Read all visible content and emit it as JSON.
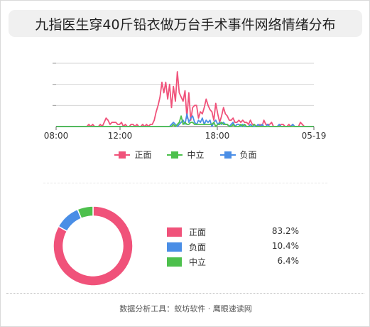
{
  "title": "九指医生穿40斤铅衣做万台手术事件网络情绪分布",
  "footer": "数据分析工具：蚁坊软件 · 鹰眼速读网",
  "colors": {
    "positive": "#f0527a",
    "neutral": "#4dc04d",
    "negative": "#4a8ee6"
  },
  "chart_data": [
    {
      "type": "line",
      "x_ticks": [
        "08:00",
        "12:00",
        "18:00",
        "05-19"
      ],
      "grid": true,
      "legend_position": "bottom-center",
      "series": [
        {
          "name": "正面",
          "values": [
            0,
            0,
            0,
            0,
            0,
            0,
            0,
            0,
            0,
            0,
            0,
            0,
            0,
            0,
            0,
            0,
            0,
            1,
            0,
            1,
            0,
            0,
            0,
            1,
            0,
            2,
            4,
            3,
            1,
            2,
            2,
            2,
            1,
            1,
            2,
            0,
            1,
            0,
            0,
            1,
            1,
            0,
            1,
            0,
            0,
            1,
            0,
            1,
            0,
            1,
            1,
            3,
            7,
            10,
            14,
            21,
            16,
            21,
            13,
            20,
            9,
            19,
            12,
            26,
            16,
            14,
            12,
            17,
            4,
            16,
            3,
            9,
            10,
            10,
            4,
            7,
            6,
            9,
            13,
            10,
            8,
            7,
            3,
            11,
            6,
            2,
            5,
            9,
            6,
            5,
            3,
            3,
            4,
            2,
            2,
            3,
            2,
            3,
            2,
            2,
            1,
            3,
            1,
            1,
            0,
            0,
            1,
            0,
            3,
            1,
            1,
            1,
            2,
            0,
            0,
            0,
            0,
            1,
            1,
            0,
            0,
            1,
            0,
            1,
            0,
            0,
            0,
            2,
            1,
            0,
            0,
            0,
            0,
            0,
            0
          ]
        },
        {
          "name": "中立",
          "values": [
            0,
            0,
            0,
            0,
            0,
            0,
            0,
            0,
            0,
            0,
            0,
            0,
            0,
            0,
            0,
            0,
            0,
            0,
            0,
            0,
            0,
            0,
            0,
            0,
            0,
            0,
            0,
            0,
            0,
            0,
            0,
            0,
            0,
            0,
            0,
            0,
            0,
            0,
            0,
            0,
            0,
            0,
            0,
            0,
            0,
            0,
            0,
            0,
            0,
            0,
            0,
            0,
            0,
            0,
            0,
            0,
            0,
            0,
            0,
            0,
            0,
            1,
            0,
            1,
            2,
            5,
            1,
            2,
            1,
            1,
            2,
            2,
            1,
            1,
            1,
            1,
            1,
            1,
            1,
            1,
            1,
            1,
            2,
            0,
            1,
            1,
            2,
            1,
            1,
            1,
            0,
            0,
            1,
            0,
            0,
            0,
            1,
            0,
            1,
            0,
            0,
            0,
            0,
            1,
            0,
            0,
            0,
            0,
            0,
            0,
            0,
            0,
            0,
            0,
            0,
            0,
            0,
            0,
            0,
            0,
            0,
            0,
            0,
            0,
            0,
            0,
            0,
            0,
            0,
            0,
            0,
            0,
            0,
            0,
            0
          ]
        },
        {
          "name": "负面",
          "values": [
            0,
            0,
            0,
            0,
            0,
            0,
            0,
            0,
            0,
            0,
            0,
            0,
            0,
            0,
            0,
            0,
            0,
            0,
            0,
            0,
            0,
            0,
            0,
            0,
            0,
            0,
            0,
            0,
            0,
            0,
            0,
            0,
            0,
            0,
            0,
            0,
            0,
            0,
            0,
            0,
            0,
            0,
            0,
            0,
            0,
            0,
            0,
            0,
            0,
            0,
            0,
            0,
            0,
            0,
            0,
            0,
            0,
            0,
            0,
            0,
            1,
            2,
            1,
            0,
            1,
            2,
            3,
            1,
            6,
            2,
            4,
            5,
            2,
            1,
            3,
            2,
            4,
            1,
            3,
            2,
            3,
            0,
            2,
            3,
            1,
            2,
            1,
            2,
            1,
            1,
            0,
            1,
            2,
            0,
            1,
            1,
            0,
            1,
            0,
            0,
            0,
            1,
            0,
            0,
            0,
            1,
            0,
            1,
            0,
            0,
            1,
            0,
            0,
            0,
            0,
            0,
            1,
            0,
            0,
            0,
            0,
            0,
            0,
            1,
            0,
            0,
            0,
            0,
            0,
            0,
            0,
            0,
            0,
            0,
            0
          ]
        }
      ]
    },
    {
      "type": "pie",
      "donut": true,
      "legend_position": "right",
      "slices": [
        {
          "label": "正面",
          "value": 83.2,
          "display": "83.2%",
          "color": "#f0527a"
        },
        {
          "label": "负面",
          "value": 10.4,
          "display": "10.4%",
          "color": "#4a8ee6"
        },
        {
          "label": "中立",
          "value": 6.4,
          "display": "6.4%",
          "color": "#4dc04d"
        }
      ]
    }
  ]
}
